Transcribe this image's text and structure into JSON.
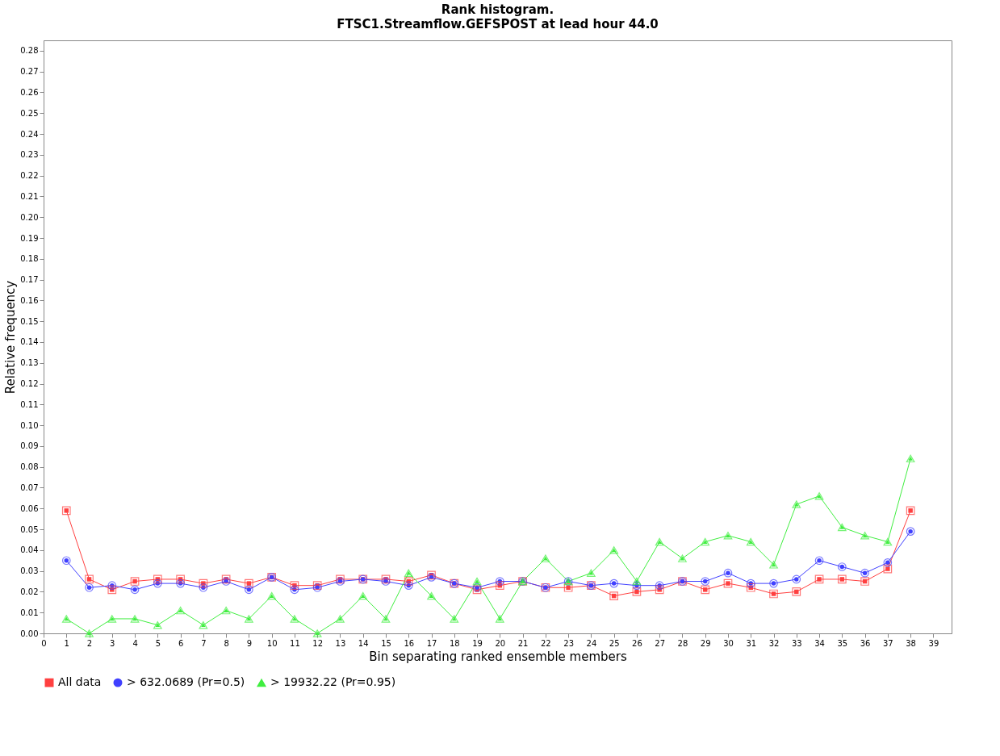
{
  "chart_data": {
    "type": "line",
    "title": "Rank histogram.",
    "subtitle": "FTSC1.Streamflow.GEFSPOST at lead hour 44.0",
    "xlabel": "Bin separating ranked ensemble members",
    "ylabel": "Relative frequency",
    "x": [
      1,
      2,
      3,
      4,
      5,
      6,
      7,
      8,
      9,
      10,
      11,
      12,
      13,
      14,
      15,
      16,
      17,
      18,
      19,
      20,
      21,
      22,
      23,
      24,
      25,
      26,
      27,
      28,
      29,
      30,
      31,
      32,
      33,
      34,
      35,
      36,
      37,
      38
    ],
    "series": [
      {
        "name": "All data",
        "color": "#ff4040",
        "marker": "square",
        "values": [
          0.059,
          0.026,
          0.021,
          0.025,
          0.026,
          0.026,
          0.024,
          0.026,
          0.024,
          0.027,
          0.023,
          0.023,
          0.026,
          0.026,
          0.026,
          0.025,
          0.028,
          0.024,
          0.021,
          0.023,
          0.025,
          0.022,
          0.022,
          0.023,
          0.018,
          0.02,
          0.021,
          0.025,
          0.021,
          0.024,
          0.022,
          0.019,
          0.02,
          0.026,
          0.026,
          0.025,
          0.031,
          0.059
        ]
      },
      {
        "name": "> 632.0689 (Pr=0.5)",
        "color": "#4040ff",
        "marker": "circle",
        "values": [
          0.035,
          0.022,
          0.023,
          0.021,
          0.024,
          0.024,
          0.022,
          0.025,
          0.021,
          0.027,
          0.021,
          0.022,
          0.025,
          0.026,
          0.025,
          0.023,
          0.027,
          0.024,
          0.022,
          0.025,
          0.025,
          0.022,
          0.025,
          0.023,
          0.024,
          0.023,
          0.023,
          0.025,
          0.025,
          0.029,
          0.024,
          0.024,
          0.026,
          0.035,
          0.032,
          0.029,
          0.034,
          0.049
        ]
      },
      {
        "name": "> 19932.22 (Pr=0.95)",
        "color": "#40ee40",
        "marker": "triangle",
        "values": [
          0.007,
          0.0,
          0.007,
          0.007,
          0.004,
          0.011,
          0.004,
          0.011,
          0.007,
          0.018,
          0.007,
          0.0,
          0.007,
          0.018,
          0.007,
          0.029,
          0.018,
          0.007,
          0.025,
          0.007,
          0.025,
          0.036,
          0.025,
          0.029,
          0.04,
          0.025,
          0.044,
          0.036,
          0.044,
          0.047,
          0.044,
          0.033,
          0.062,
          0.066,
          0.051,
          0.047,
          0.044,
          0.084
        ]
      }
    ],
    "xlim": [
      0,
      39.8
    ],
    "xticks": [
      0,
      1,
      2,
      3,
      4,
      5,
      6,
      7,
      8,
      9,
      10,
      11,
      12,
      13,
      14,
      15,
      16,
      17,
      18,
      19,
      20,
      21,
      22,
      23,
      24,
      25,
      26,
      27,
      28,
      29,
      30,
      31,
      32,
      33,
      34,
      35,
      36,
      37,
      38,
      39
    ],
    "ylim": [
      0,
      0.285
    ],
    "yticks": [
      {
        "value": 0,
        "label": "0.00"
      },
      {
        "value": 0.01,
        "label": "0.01"
      },
      {
        "value": 0.02,
        "label": "0.02"
      },
      {
        "value": 0.03,
        "label": "0.03"
      },
      {
        "value": 0.04,
        "label": "0.04"
      },
      {
        "value": 0.05,
        "label": "0.05"
      },
      {
        "value": 0.06,
        "label": "0.06"
      },
      {
        "value": 0.07,
        "label": "0.07"
      },
      {
        "value": 0.08,
        "label": "0.08"
      },
      {
        "value": 0.09,
        "label": "0.09"
      },
      {
        "value": 0.1,
        "label": "0.10"
      },
      {
        "value": 0.11,
        "label": "0.11"
      },
      {
        "value": 0.12,
        "label": "0.12"
      },
      {
        "value": 0.13,
        "label": "0.13"
      },
      {
        "value": 0.14,
        "label": "0.14"
      },
      {
        "value": 0.15,
        "label": "0.15"
      },
      {
        "value": 0.16,
        "label": "0.16"
      },
      {
        "value": 0.17,
        "label": "0.17"
      },
      {
        "value": 0.18,
        "label": "0.18"
      },
      {
        "value": 0.19,
        "label": "0.19"
      },
      {
        "value": 0.2,
        "label": "0.20"
      },
      {
        "value": 0.21,
        "label": "0.21"
      },
      {
        "value": 0.22,
        "label": "0.22"
      },
      {
        "value": 0.23,
        "label": "0.23"
      },
      {
        "value": 0.24,
        "label": "0.24"
      },
      {
        "value": 0.25,
        "label": "0.25"
      },
      {
        "value": 0.26,
        "label": "0.26"
      },
      {
        "value": 0.27,
        "label": "0.27"
      },
      {
        "value": 0.28,
        "label": "0.28"
      }
    ],
    "grid": false,
    "legend": "bottom",
    "line_style": "solid"
  }
}
